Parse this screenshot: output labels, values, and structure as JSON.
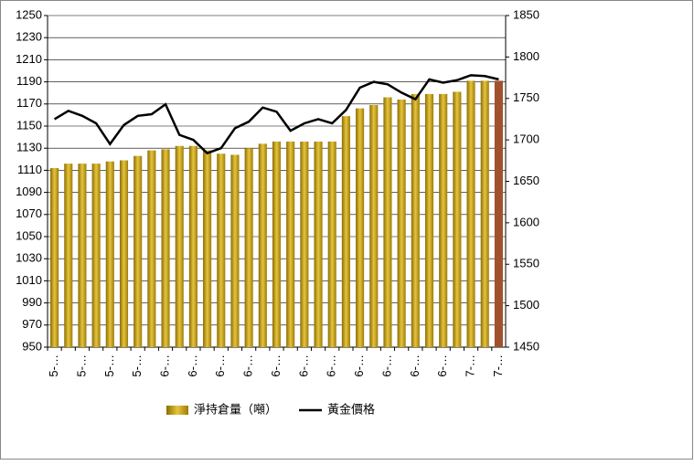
{
  "chart_data": {
    "type": "bar_line",
    "categories": [
      "5-…",
      null,
      "5-…",
      null,
      "5-…",
      null,
      "5-…",
      null,
      "6-…",
      null,
      "6-…",
      null,
      "6-…",
      null,
      "6-…",
      null,
      "6-…",
      null,
      "6-…",
      null,
      "6-…",
      null,
      "6-…",
      null,
      "6-…",
      null,
      "6-…",
      null,
      "6-…",
      null,
      "7-…",
      null,
      "7-…"
    ],
    "series": [
      {
        "name": "淨持倉量（噸）",
        "color": "#c9a416",
        "colors": [
          "#c9a416",
          "#c9a416",
          "#c9a416",
          "#c9a416",
          "#c9a416",
          "#c9a416",
          "#c9a416",
          "#c9a416",
          "#c9a416",
          "#c9a416",
          "#c9a416",
          "#c9a416",
          "#c9a416",
          "#c9a416",
          "#c9a416",
          "#c9a416",
          "#c9a416",
          "#c9a416",
          "#c9a416",
          "#c9a416",
          "#c9a416",
          "#c9a416",
          "#c9a416",
          "#c9a416",
          "#c9a416",
          "#c9a416",
          "#c9a416",
          "#c9a416",
          "#c9a416",
          "#c9a416",
          "#c9a416",
          "#c9a416",
          "#a0522d"
        ],
        "values": [
          1112,
          1116,
          1116,
          1116,
          1118,
          1119,
          1123,
          1128,
          1129,
          1132,
          1132,
          1128,
          1125,
          1124,
          1130,
          1134,
          1136,
          1136,
          1136,
          1136,
          1136,
          1159,
          1166,
          1169,
          1176,
          1174,
          1179,
          1179,
          1179,
          1181,
          1191,
          1191,
          1191
        ]
      },
      {
        "name": "黃金價格",
        "color": "#000000",
        "axis": "y2",
        "values": [
          1725,
          1735,
          1729,
          1720,
          1695,
          1718,
          1729,
          1731,
          1743,
          1706,
          1700,
          1684,
          1690,
          1714,
          1722,
          1739,
          1734,
          1711,
          1720,
          1725,
          1720,
          1736,
          1763,
          1770,
          1767,
          1757,
          1749,
          1773,
          1769,
          1772,
          1778,
          1777,
          1773
        ]
      }
    ],
    "ylim": [
      950,
      1250
    ],
    "yticks": [
      950,
      970,
      990,
      1010,
      1030,
      1050,
      1070,
      1090,
      1110,
      1130,
      1150,
      1170,
      1190,
      1210,
      1230,
      1250
    ],
    "y2lim": [
      1450,
      1850
    ],
    "y2ticks": [
      1450,
      1500,
      1550,
      1600,
      1650,
      1700,
      1750,
      1800,
      1850
    ],
    "grid": true,
    "legend": "bottom"
  }
}
